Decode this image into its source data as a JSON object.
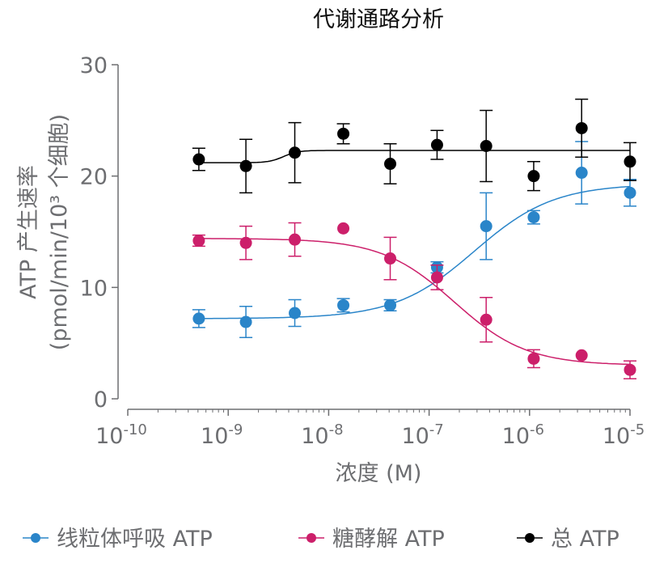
{
  "chart_data": {
    "type": "scatter",
    "title": "代谢通路分析",
    "xlabel": "浓度 (M)",
    "ylabel": [
      "ATP 产生速率",
      "(pmol/min/10³ 个细胞)"
    ],
    "x_scale": "log",
    "xlim": [
      1e-10,
      1e-05
    ],
    "ylim": [
      0,
      30
    ],
    "x_ticks": [
      {
        "base": "10",
        "exp": "-10"
      },
      {
        "base": "10",
        "exp": "-9"
      },
      {
        "base": "10",
        "exp": "-8"
      },
      {
        "base": "10",
        "exp": "-7"
      },
      {
        "base": "10",
        "exp": "-6"
      },
      {
        "base": "10",
        "exp": "-5"
      }
    ],
    "y_ticks": [
      "0",
      "10",
      "20",
      "30"
    ],
    "grid": false,
    "legend_position": "bottom",
    "x": [
      5.1e-10,
      1.5e-09,
      4.6e-09,
      1.4e-08,
      4.1e-08,
      1.2e-07,
      3.7e-07,
      1.1e-06,
      3.3e-06,
      1e-05
    ],
    "series": [
      {
        "name": "线粒体呼吸 ATP",
        "color": "#2a85c9",
        "values": [
          7.2,
          6.9,
          7.7,
          8.4,
          8.4,
          11.8,
          15.5,
          16.3,
          20.3,
          18.5
        ],
        "errors": [
          0.8,
          1.4,
          1.2,
          0.6,
          0.5,
          0.5,
          3.0,
          0.6,
          2.8,
          1.2
        ],
        "fit": {
          "bottom": 7.2,
          "top": 19.3,
          "log_ec50": -6.55,
          "hill": 1.1
        }
      },
      {
        "name": "糖酵解 ATP",
        "color": "#cc1f6a",
        "values": [
          14.2,
          14.0,
          14.3,
          15.3,
          12.6,
          10.9,
          7.1,
          3.6,
          3.9,
          2.6
        ],
        "errors": [
          0.5,
          1.5,
          1.5,
          0,
          1.9,
          1.1,
          2.0,
          0.8,
          0,
          0.8
        ],
        "fit": {
          "bottom": 3.0,
          "top": 14.4,
          "log_ec50": -6.75,
          "hill": -1.2
        }
      },
      {
        "name": "总 ATP",
        "color": "#000000",
        "values": [
          21.5,
          20.9,
          22.1,
          23.8,
          21.1,
          22.8,
          22.7,
          20.0,
          24.3,
          21.3
        ],
        "errors": [
          1.0,
          2.4,
          2.7,
          0.9,
          1.8,
          1.3,
          3.2,
          1.3,
          2.6,
          1.7
        ],
        "fit": {
          "bottom": 21.2,
          "top": 22.3,
          "log_ec50": -8.45,
          "hill": 6
        }
      }
    ]
  }
}
